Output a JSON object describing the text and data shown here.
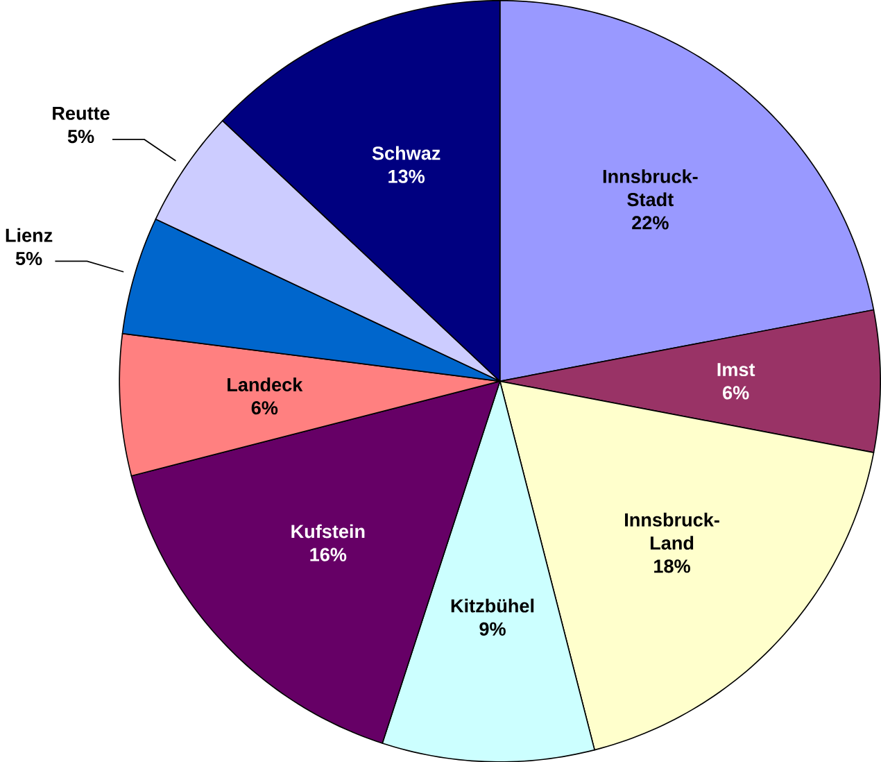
{
  "chart_data": {
    "type": "pie",
    "categories": [
      "Innsbruck-Stadt",
      "Imst",
      "Innsbruck-Land",
      "Kitzbühel",
      "Kufstein",
      "Landeck",
      "Lienz",
      "Reutte",
      "Schwaz"
    ],
    "values": [
      22,
      6,
      18,
      9,
      16,
      6,
      5,
      5,
      13
    ],
    "value_labels": [
      "22%",
      "6%",
      "18%",
      "9%",
      "16%",
      "6%",
      "5%",
      "5%",
      "13%"
    ],
    "colors": [
      "#9999ff",
      "#993366",
      "#ffffcc",
      "#ccffff",
      "#660066",
      "#ff8080",
      "#0066cc",
      "#ccccff",
      "#000080"
    ],
    "legend": false
  }
}
